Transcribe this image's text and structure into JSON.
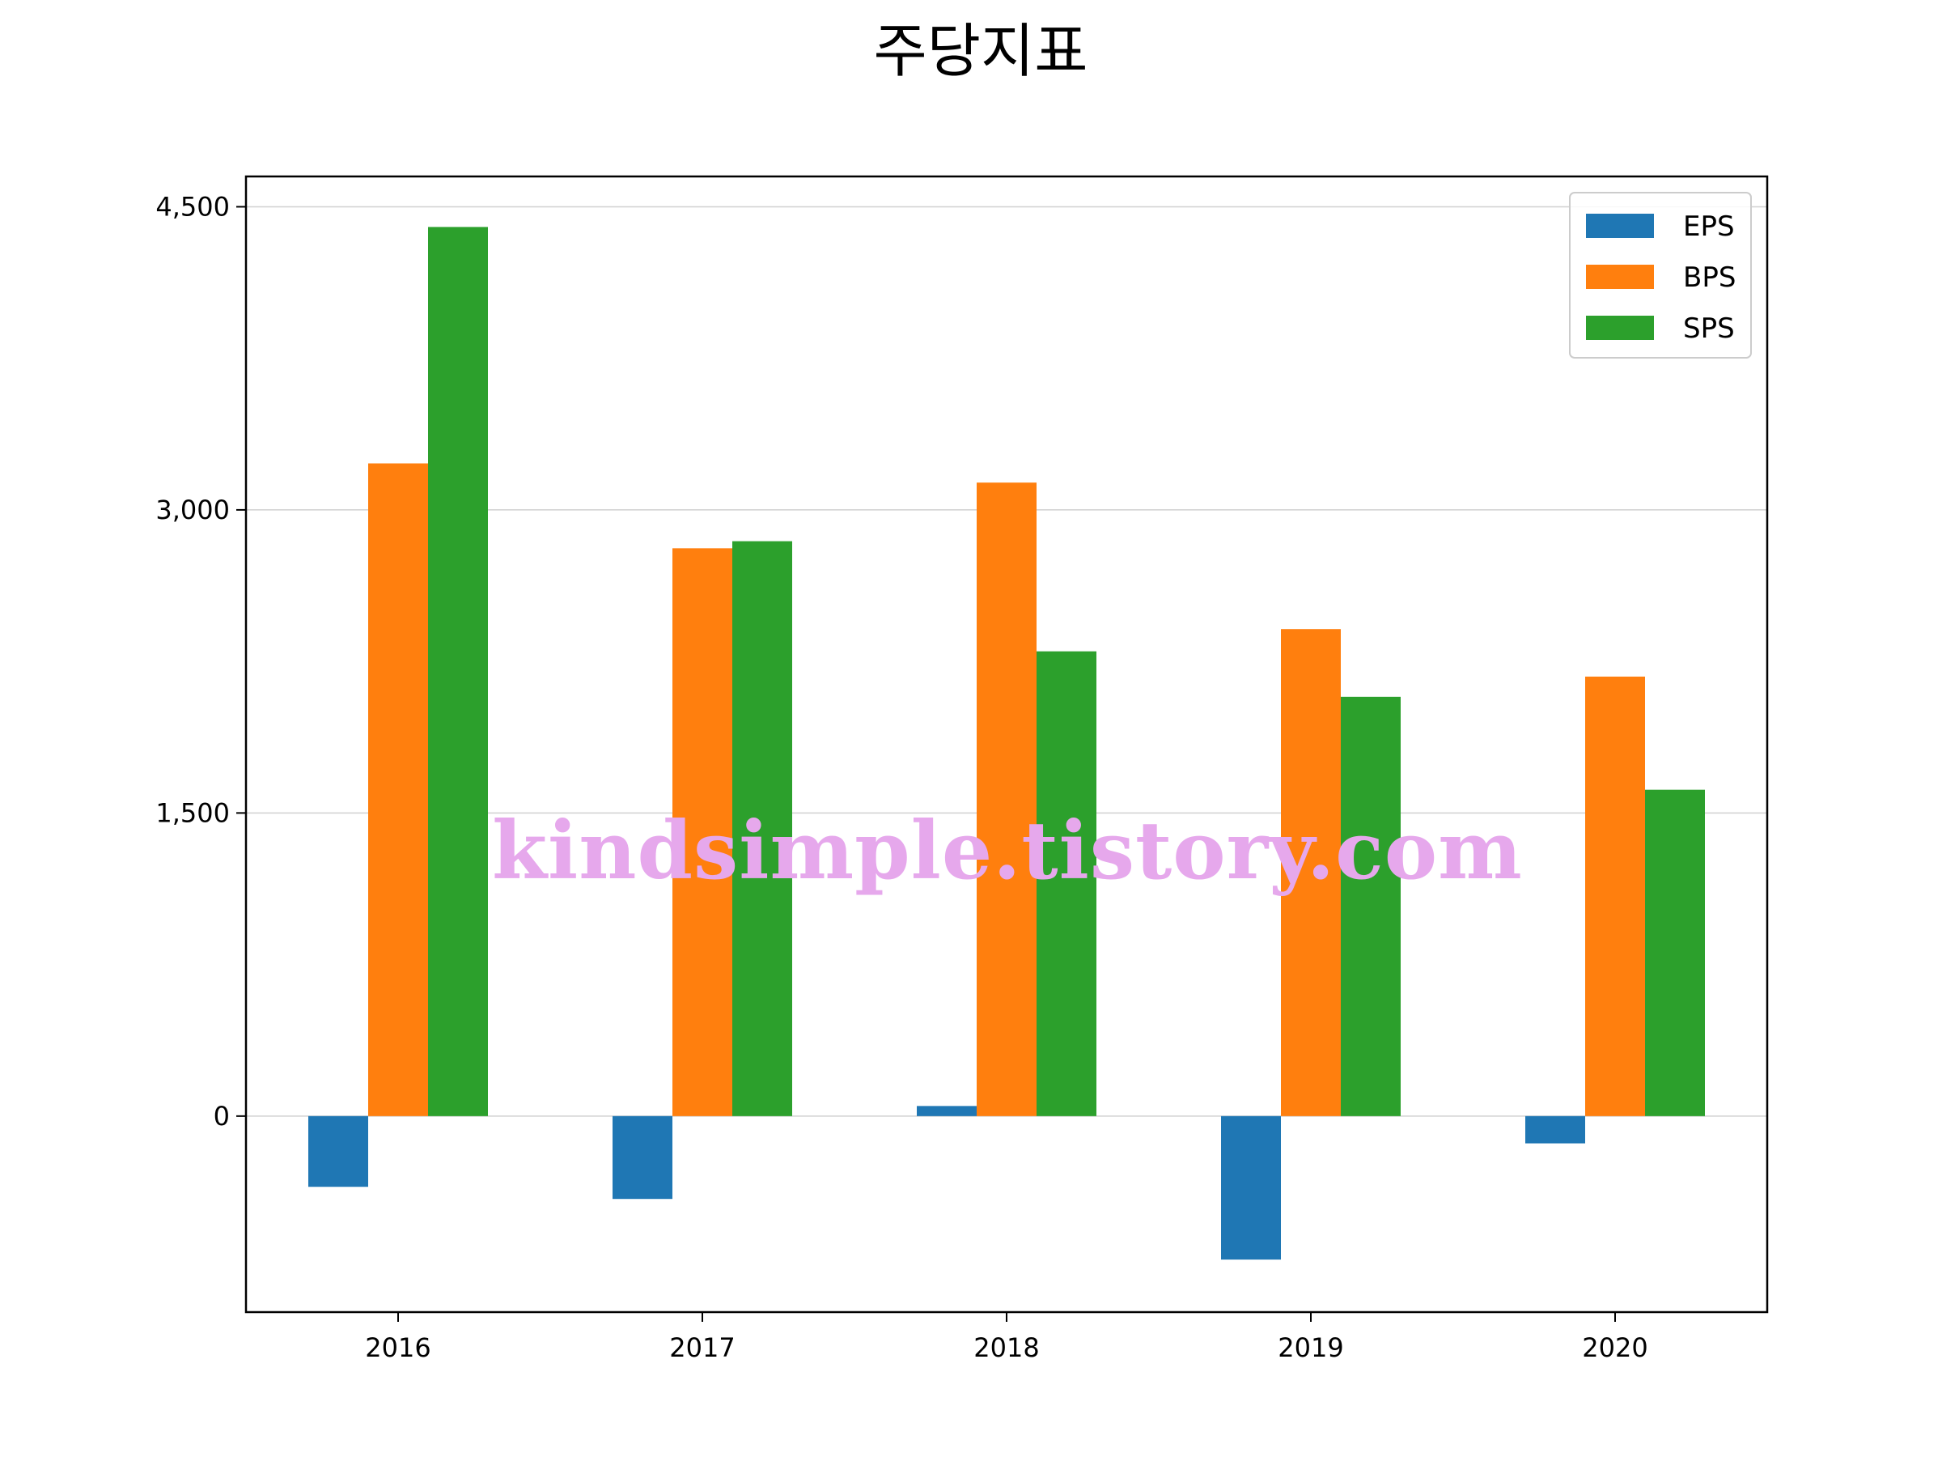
{
  "chart_data": {
    "type": "bar",
    "title": "주당지표",
    "xlabel": "",
    "ylabel": "",
    "categories": [
      "2016",
      "2017",
      "2018",
      "2019",
      "2020"
    ],
    "series": [
      {
        "name": "EPS",
        "color": "#1f77b4",
        "values": [
          -350,
          -410,
          50,
          -710,
          -135
        ]
      },
      {
        "name": "BPS",
        "color": "#ff7f0e",
        "values": [
          3230,
          2810,
          3135,
          2410,
          2175
        ]
      },
      {
        "name": "SPS",
        "color": "#2ca02c",
        "values": [
          4400,
          2845,
          2300,
          2075,
          1615
        ]
      }
    ],
    "ylim": [
      -970,
      4650
    ],
    "yticks": [
      0,
      1500,
      3000,
      4500
    ],
    "ytick_labels": [
      "0",
      "1,500",
      "3,000",
      "4,500"
    ],
    "grid": "horizontal",
    "legend_position": "top-right"
  },
  "watermark": "kindsimple.tistory.com"
}
